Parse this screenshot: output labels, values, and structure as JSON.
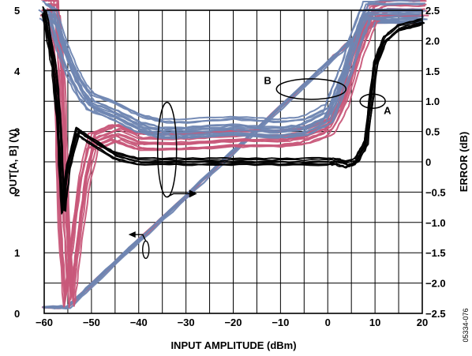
{
  "chart_data": {
    "type": "line",
    "title": "",
    "xlabel": "INPUT AMPLITUDE (dBm)",
    "ylabel_left": "OUT[A, B] (V)",
    "ylabel_right": "ERROR (dB)",
    "xlim": [
      -60,
      20
    ],
    "ylim_left": [
      0,
      5
    ],
    "ylim_right": [
      -2.5,
      2.5
    ],
    "x_ticks": [
      "−60",
      "−50",
      "−40",
      "−30",
      "−20",
      "−10",
      "0",
      "10",
      "20"
    ],
    "y_left_ticks": [
      "0",
      "1",
      "2",
      "3",
      "4",
      "5"
    ],
    "y_right_ticks": [
      "2.5",
      "2.0",
      "1.5",
      "1.0",
      "0.5",
      "0",
      "−0.5",
      "−1.0",
      "−1.5",
      "−2.0",
      "−2.5"
    ],
    "grid": true,
    "colors": {
      "channel_a": "#c8587a",
      "channel_b": "#6f86b2",
      "reference": "#000000",
      "grid": "#000000"
    },
    "annotations": [
      {
        "text": "A",
        "x": 11.5,
        "y_right": 0.85
      },
      {
        "text": "B",
        "x": -13.5,
        "y_right": 1.35
      },
      {
        "text": "error curves ellipse",
        "x": -34,
        "y_right": 0.2,
        "arrow": "right"
      },
      {
        "text": "output curves ellipse",
        "x": -38.5,
        "y_left": 1.05,
        "arrow": "left"
      }
    ],
    "figure_id": "05334-076",
    "series": [
      {
        "axis": "left",
        "x": [
          -60,
          -55,
          -50,
          -40,
          -30,
          -20,
          -10,
          0,
          5,
          10,
          20
        ],
        "values": [
          0.1,
          0.1,
          0.47,
          1.2,
          1.93,
          2.67,
          3.4,
          4.13,
          4.5,
          4.8,
          4.8
        ]
      },
      {
        "axis": "right",
        "x": [
          -60,
          -58,
          -57,
          -56,
          -55,
          -53,
          -50,
          -45,
          -40,
          -30,
          -20,
          -10,
          0,
          2,
          4,
          6,
          8,
          10,
          12,
          15,
          20
        ],
        "values": [
          2.5,
          1.6,
          0.8,
          -0.8,
          -0.1,
          0.5,
          0.35,
          0.1,
          0.0,
          0.0,
          0.0,
          0.0,
          0.0,
          0.0,
          -0.05,
          0.0,
          0.3,
          1.6,
          2.0,
          2.2,
          2.3
        ]
      },
      {
        "axis": "right",
        "x": [
          -60,
          -58,
          -57,
          -56,
          -55,
          -54,
          -52,
          -50,
          -45,
          -40,
          -30,
          -20,
          -10,
          -5,
          0,
          3,
          6,
          9,
          12,
          20
        ],
        "values": [
          2.5,
          2.5,
          1.4,
          -1.0,
          -2.3,
          -1.6,
          -0.4,
          0.3,
          0.45,
          0.3,
          0.3,
          0.35,
          0.35,
          0.4,
          0.55,
          1.0,
          1.8,
          2.4,
          2.5,
          2.5
        ]
      },
      {
        "axis": "right",
        "x": [
          -60,
          -58,
          -56,
          -54,
          -52,
          -50,
          -45,
          -40,
          -35,
          -30,
          -20,
          -10,
          -5,
          0,
          2,
          4,
          6,
          8,
          20
        ],
        "values": [
          2.5,
          2.4,
          1.9,
          1.5,
          1.2,
          1.0,
          0.85,
          0.65,
          0.55,
          0.55,
          0.6,
          0.55,
          0.6,
          0.8,
          1.2,
          1.6,
          2.1,
          2.5,
          2.5
        ]
      }
    ]
  }
}
